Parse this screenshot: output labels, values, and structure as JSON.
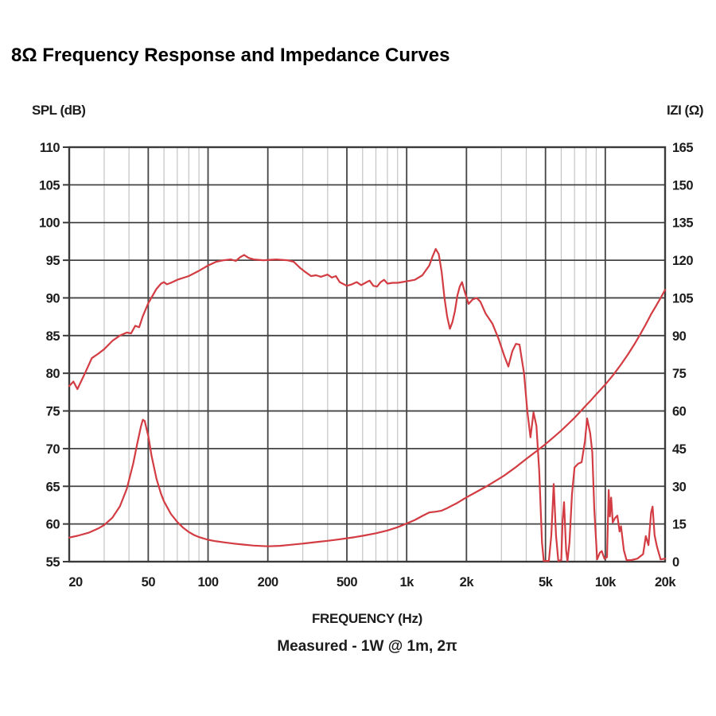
{
  "title": "8Ω Frequency Response and Impedance Curves",
  "left_axis": {
    "label": "SPL (dB)",
    "ticks": [
      "110",
      "105",
      "100",
      "95",
      "90",
      "85",
      "80",
      "75",
      "70",
      "65",
      "60",
      "55"
    ],
    "tick_values": [
      110,
      105,
      100,
      95,
      90,
      85,
      80,
      75,
      70,
      65,
      60,
      55
    ]
  },
  "right_axis": {
    "label": "IZI (Ω)",
    "ticks": [
      "165",
      "150",
      "135",
      "120",
      "105",
      "90",
      "75",
      "60",
      "45",
      "30",
      "15",
      "0"
    ],
    "tick_values": [
      165,
      150,
      135,
      120,
      105,
      90,
      75,
      60,
      45,
      30,
      15,
      0
    ]
  },
  "x_axis": {
    "label": "FREQUENCY (Hz)",
    "ticks": [
      "20",
      "50",
      "100",
      "200",
      "500",
      "1k",
      "2k",
      "5k",
      "10k",
      "20k"
    ],
    "tick_values": [
      20,
      50,
      100,
      200,
      500,
      1000,
      2000,
      5000,
      10000,
      20000
    ],
    "minor_values": [
      30,
      40,
      60,
      70,
      80,
      90,
      300,
      400,
      600,
      700,
      800,
      900,
      3000,
      4000,
      6000,
      7000,
      8000,
      9000
    ]
  },
  "footnote": "Measured - 1W @ 1m, 2π",
  "colors": {
    "curve": "#d23c42",
    "grid_major": "#444444",
    "grid_minor": "#c4c4c4",
    "frame": "#3a3a3a",
    "text": "#1c1c1c"
  },
  "chart_data": {
    "type": "line",
    "title": "8Ω Frequency Response and Impedance Curves",
    "xlabel": "FREQUENCY (Hz)",
    "x_scale": "log",
    "x_range": [
      20,
      20000
    ],
    "left_ylabel": "SPL (dB)",
    "left_y_range": [
      55,
      110
    ],
    "right_ylabel": "IZI (Ω)",
    "right_y_range": [
      0,
      165
    ],
    "grid": true,
    "series": [
      {
        "name": "Frequency Response (SPL)",
        "y_axis": "left",
        "unit": "dB",
        "points": [
          [
            20,
            78.3
          ],
          [
            21,
            78.9
          ],
          [
            22,
            77.9
          ],
          [
            24,
            80.0
          ],
          [
            26,
            82.0
          ],
          [
            28,
            82.6
          ],
          [
            30,
            83.2
          ],
          [
            33,
            84.3
          ],
          [
            36,
            85.0
          ],
          [
            39,
            85.4
          ],
          [
            41,
            85.3
          ],
          [
            43,
            86.3
          ],
          [
            45,
            86.1
          ],
          [
            47,
            87.6
          ],
          [
            50,
            89.3
          ],
          [
            55,
            91.2
          ],
          [
            58,
            91.9
          ],
          [
            60,
            92.1
          ],
          [
            62,
            91.8
          ],
          [
            65,
            92.0
          ],
          [
            70,
            92.4
          ],
          [
            80,
            92.9
          ],
          [
            90,
            93.6
          ],
          [
            100,
            94.3
          ],
          [
            110,
            94.8
          ],
          [
            120,
            95.0
          ],
          [
            130,
            95.1
          ],
          [
            138,
            94.9
          ],
          [
            145,
            95.4
          ],
          [
            152,
            95.7
          ],
          [
            160,
            95.3
          ],
          [
            170,
            95.1
          ],
          [
            190,
            95.0
          ],
          [
            220,
            95.1
          ],
          [
            250,
            95.0
          ],
          [
            270,
            94.8
          ],
          [
            290,
            94.0
          ],
          [
            310,
            93.4
          ],
          [
            330,
            92.9
          ],
          [
            350,
            93.0
          ],
          [
            370,
            92.8
          ],
          [
            400,
            93.1
          ],
          [
            420,
            92.7
          ],
          [
            440,
            92.9
          ],
          [
            460,
            92.1
          ],
          [
            500,
            91.6
          ],
          [
            530,
            91.8
          ],
          [
            560,
            92.1
          ],
          [
            590,
            91.7
          ],
          [
            620,
            92.0
          ],
          [
            650,
            92.3
          ],
          [
            680,
            91.6
          ],
          [
            710,
            91.5
          ],
          [
            740,
            92.1
          ],
          [
            770,
            92.4
          ],
          [
            800,
            91.9
          ],
          [
            850,
            92.0
          ],
          [
            900,
            92.0
          ],
          [
            1000,
            92.2
          ],
          [
            1100,
            92.4
          ],
          [
            1200,
            93.0
          ],
          [
            1300,
            94.3
          ],
          [
            1350,
            95.5
          ],
          [
            1400,
            96.5
          ],
          [
            1450,
            95.8
          ],
          [
            1500,
            93.5
          ],
          [
            1550,
            90.0
          ],
          [
            1600,
            87.5
          ],
          [
            1650,
            85.9
          ],
          [
            1700,
            86.8
          ],
          [
            1750,
            88.3
          ],
          [
            1800,
            90.3
          ],
          [
            1850,
            91.5
          ],
          [
            1900,
            92.1
          ],
          [
            1950,
            91.0
          ],
          [
            2050,
            89.2
          ],
          [
            2150,
            89.8
          ],
          [
            2250,
            90.0
          ],
          [
            2350,
            89.5
          ],
          [
            2500,
            87.9
          ],
          [
            2700,
            86.6
          ],
          [
            2900,
            84.6
          ],
          [
            3100,
            82.3
          ],
          [
            3250,
            80.9
          ],
          [
            3400,
            82.9
          ],
          [
            3550,
            83.9
          ],
          [
            3700,
            83.8
          ],
          [
            3900,
            80.0
          ],
          [
            4050,
            75.0
          ],
          [
            4200,
            71.5
          ],
          [
            4350,
            74.8
          ],
          [
            4500,
            73.0
          ],
          [
            4650,
            67.0
          ],
          [
            4800,
            57.5
          ],
          [
            4900,
            55.1
          ],
          [
            5200,
            55.1
          ],
          [
            5350,
            58.5
          ],
          [
            5500,
            65.3
          ],
          [
            5650,
            58.5
          ],
          [
            5800,
            55.1
          ],
          [
            6000,
            55.2
          ],
          [
            6100,
            60.5
          ],
          [
            6200,
            62.9
          ],
          [
            6350,
            56.5
          ],
          [
            6450,
            55.1
          ],
          [
            6600,
            57.5
          ],
          [
            6800,
            64.0
          ],
          [
            7000,
            67.5
          ],
          [
            7300,
            68.0
          ],
          [
            7600,
            68.2
          ],
          [
            7900,
            71.0
          ],
          [
            8100,
            74.0
          ],
          [
            8400,
            72.0
          ],
          [
            8600,
            69.5
          ],
          [
            8800,
            62.0
          ],
          [
            9100,
            55.3
          ],
          [
            9400,
            56.2
          ],
          [
            9600,
            56.4
          ],
          [
            9900,
            55.4
          ],
          [
            10200,
            55.6
          ],
          [
            10400,
            64.5
          ],
          [
            10550,
            61.0
          ],
          [
            10700,
            63.5
          ],
          [
            10900,
            60.2
          ],
          [
            11200,
            60.8
          ],
          [
            11500,
            61.1
          ],
          [
            11800,
            59.0
          ],
          [
            12000,
            59.7
          ],
          [
            12400,
            56.5
          ],
          [
            12800,
            55.2
          ],
          [
            13500,
            55.2
          ],
          [
            14500,
            55.4
          ],
          [
            15500,
            56.0
          ],
          [
            16000,
            58.4
          ],
          [
            16500,
            57.2
          ],
          [
            17000,
            61.5
          ],
          [
            17300,
            62.3
          ],
          [
            17700,
            58.5
          ],
          [
            18200,
            57.0
          ],
          [
            19000,
            55.3
          ],
          [
            20000,
            55.4
          ]
        ]
      },
      {
        "name": "Impedance |Z|",
        "y_axis": "right",
        "unit": "Ω",
        "points": [
          [
            20,
            9.6
          ],
          [
            22,
            10.3
          ],
          [
            25,
            11.5
          ],
          [
            28,
            13.2
          ],
          [
            30,
            14.6
          ],
          [
            33,
            17.5
          ],
          [
            36,
            22
          ],
          [
            39,
            29
          ],
          [
            42,
            39
          ],
          [
            44,
            47
          ],
          [
            46,
            54
          ],
          [
            47,
            56.5
          ],
          [
            48,
            56
          ],
          [
            50,
            50
          ],
          [
            52,
            42
          ],
          [
            55,
            33
          ],
          [
            58,
            27
          ],
          [
            60,
            24
          ],
          [
            65,
            19
          ],
          [
            70,
            15.8
          ],
          [
            75,
            13.5
          ],
          [
            80,
            11.8
          ],
          [
            85,
            10.6
          ],
          [
            90,
            9.8
          ],
          [
            100,
            8.7
          ],
          [
            110,
            8.1
          ],
          [
            120,
            7.7
          ],
          [
            135,
            7.2
          ],
          [
            150,
            6.8
          ],
          [
            170,
            6.4
          ],
          [
            200,
            6.1
          ],
          [
            230,
            6.3
          ],
          [
            260,
            6.7
          ],
          [
            300,
            7.2
          ],
          [
            350,
            7.8
          ],
          [
            400,
            8.3
          ],
          [
            450,
            8.8
          ],
          [
            500,
            9.3
          ],
          [
            550,
            9.8
          ],
          [
            600,
            10.3
          ],
          [
            700,
            11.3
          ],
          [
            800,
            12.4
          ],
          [
            900,
            13.7
          ],
          [
            1000,
            15.2
          ],
          [
            1100,
            16.6
          ],
          [
            1200,
            18.2
          ],
          [
            1300,
            19.6
          ],
          [
            1400,
            19.9
          ],
          [
            1500,
            20.3
          ],
          [
            1600,
            21.3
          ],
          [
            1800,
            23.4
          ],
          [
            2000,
            25.6
          ],
          [
            2200,
            27.4
          ],
          [
            2500,
            29.8
          ],
          [
            2800,
            32.1
          ],
          [
            3100,
            34.3
          ],
          [
            3500,
            37.3
          ],
          [
            4000,
            40.9
          ],
          [
            4500,
            44.0
          ],
          [
            5000,
            46.8
          ],
          [
            5500,
            49.6
          ],
          [
            6000,
            52.2
          ],
          [
            6500,
            54.8
          ],
          [
            7000,
            57.3
          ],
          [
            7500,
            59.8
          ],
          [
            8000,
            62.2
          ],
          [
            8500,
            64.4
          ],
          [
            9000,
            66.6
          ],
          [
            9500,
            68.6
          ],
          [
            10000,
            70.5
          ],
          [
            11000,
            74.5
          ],
          [
            12000,
            78.5
          ],
          [
            13000,
            82.5
          ],
          [
            14000,
            86.5
          ],
          [
            15000,
            90.5
          ],
          [
            16000,
            94.5
          ],
          [
            17000,
            98.5
          ],
          [
            18000,
            101.8
          ],
          [
            19000,
            105.0
          ],
          [
            20000,
            108.2
          ]
        ]
      }
    ]
  }
}
